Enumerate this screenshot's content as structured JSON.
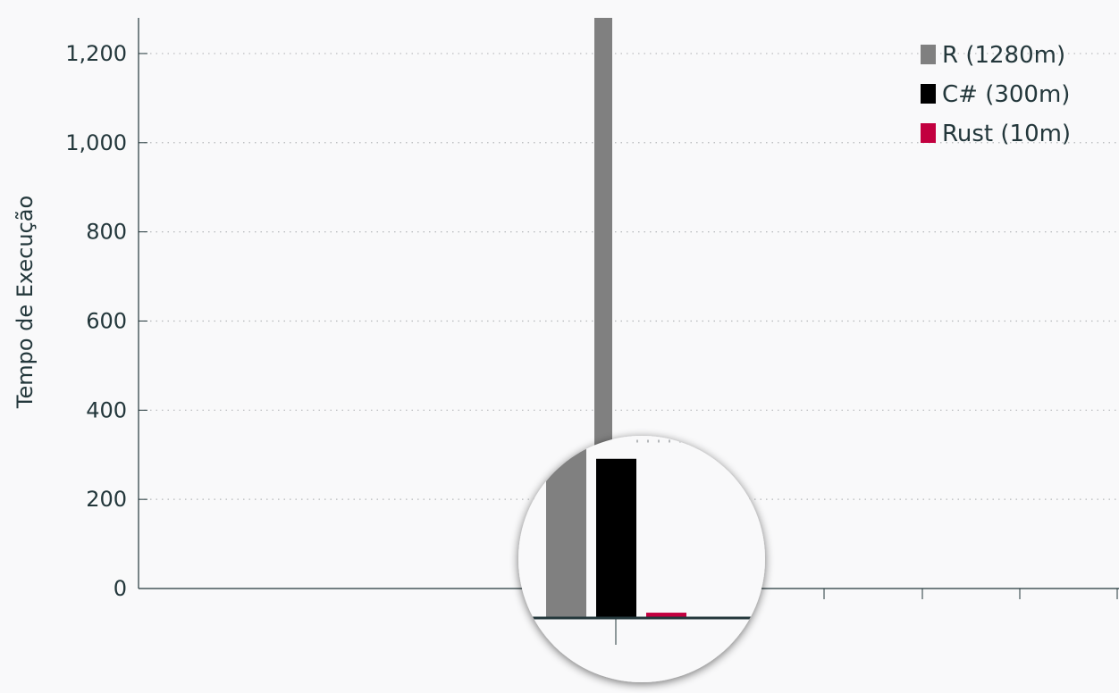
{
  "chart_data": {
    "type": "bar",
    "title": "",
    "xlabel": "",
    "ylabel": "Tempo de Execução",
    "ylim": [
      0,
      1280
    ],
    "yticks": [
      0,
      200,
      400,
      600,
      800,
      1000,
      1200
    ],
    "ytick_labels": [
      "0",
      "200",
      "400",
      "600",
      "800",
      "1,000",
      "1,200"
    ],
    "grid": "horizontal dotted",
    "legend_position": "top-right",
    "series": [
      {
        "name": "R (1280m)",
        "value": 1280,
        "color": "#808080"
      },
      {
        "name": "C# (300m)",
        "value": 300,
        "color": "#000000"
      },
      {
        "name": "Rust (10m)",
        "value": 10,
        "color": "#c2003f"
      }
    ],
    "inset": {
      "type": "magnifier",
      "description_free": true,
      "ylim": [
        0,
        340
      ]
    }
  },
  "colors": {
    "background": "#f9f9fa",
    "axis": "#23373b",
    "grid": "#b5b8ba"
  }
}
